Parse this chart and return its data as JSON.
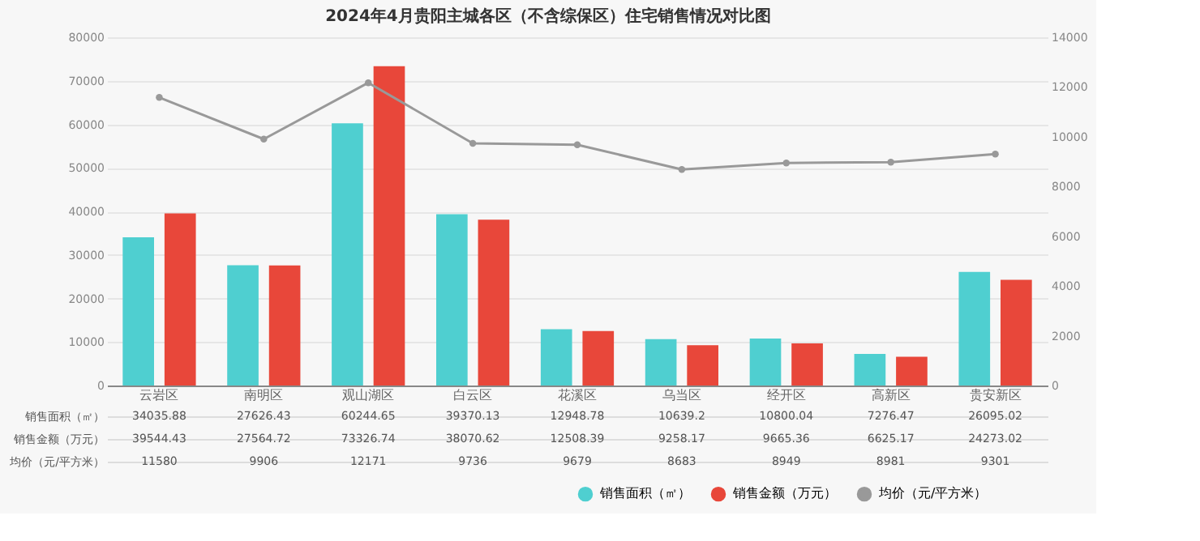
{
  "chart_data": {
    "type": "bar",
    "title": "2024年4月贵阳主城各区（不含综保区）住宅销售情况对比图",
    "categories": [
      "云岩区",
      "南明区",
      "观山湖区",
      "白云区",
      "花溪区",
      "乌当区",
      "经开区",
      "高新区",
      "贵安新区"
    ],
    "series": [
      {
        "name": "销售面积（㎡）",
        "color": "#4fcfd0",
        "values": [
          34035.88,
          27626.43,
          60244.65,
          39370.13,
          12948.78,
          10639.2,
          10800.04,
          7276.47,
          26095.02
        ]
      },
      {
        "name": "销售金额（万元）",
        "color": "#e8473a",
        "values": [
          39544.43,
          27564.72,
          73326.74,
          38070.62,
          12508.39,
          9258.17,
          9665.36,
          6625.17,
          24273.02
        ]
      },
      {
        "name": "均价（元/平方米）",
        "type": "line",
        "axis": "y2",
        "color": "#999999",
        "marker": "circle",
        "values": [
          11580,
          9906,
          12171,
          9736,
          9679,
          8683,
          8949,
          8981,
          9301
        ]
      }
    ],
    "ylim": [
      0,
      80000
    ],
    "yticks": [
      0,
      10000,
      20000,
      30000,
      40000,
      50000,
      60000,
      70000,
      80000
    ],
    "y2lim": [
      0,
      14000
    ],
    "y2ticks": [
      0,
      2000,
      4000,
      6000,
      8000,
      10000,
      12000,
      14000
    ],
    "grid": "y",
    "legend": "bottom right",
    "data_labels": true
  }
}
